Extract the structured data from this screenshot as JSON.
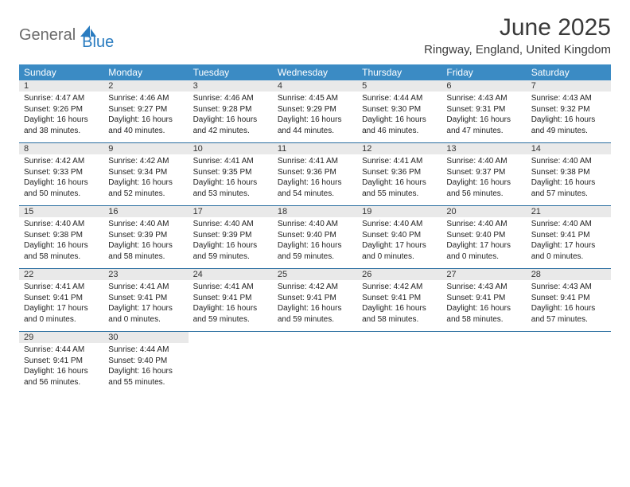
{
  "logo": {
    "word1": "General",
    "word2": "Blue",
    "word1_color": "#6b6b6b",
    "word2_color": "#2a7cc0",
    "sail_color": "#2a7cc0"
  },
  "title": "June 2025",
  "location": "Ringway, England, United Kingdom",
  "header_bg": "#3b8bc4",
  "header_fg": "#ffffff",
  "daynum_bg": "#e9e9e9",
  "divider_color": "#2a6ea0",
  "text_color": "#222222",
  "weekdays": [
    "Sunday",
    "Monday",
    "Tuesday",
    "Wednesday",
    "Thursday",
    "Friday",
    "Saturday"
  ],
  "weeks": [
    [
      {
        "day": "1",
        "sunrise": "4:47 AM",
        "sunset": "9:26 PM",
        "daylight": "16 hours and 38 minutes."
      },
      {
        "day": "2",
        "sunrise": "4:46 AM",
        "sunset": "9:27 PM",
        "daylight": "16 hours and 40 minutes."
      },
      {
        "day": "3",
        "sunrise": "4:46 AM",
        "sunset": "9:28 PM",
        "daylight": "16 hours and 42 minutes."
      },
      {
        "day": "4",
        "sunrise": "4:45 AM",
        "sunset": "9:29 PM",
        "daylight": "16 hours and 44 minutes."
      },
      {
        "day": "5",
        "sunrise": "4:44 AM",
        "sunset": "9:30 PM",
        "daylight": "16 hours and 46 minutes."
      },
      {
        "day": "6",
        "sunrise": "4:43 AM",
        "sunset": "9:31 PM",
        "daylight": "16 hours and 47 minutes."
      },
      {
        "day": "7",
        "sunrise": "4:43 AM",
        "sunset": "9:32 PM",
        "daylight": "16 hours and 49 minutes."
      }
    ],
    [
      {
        "day": "8",
        "sunrise": "4:42 AM",
        "sunset": "9:33 PM",
        "daylight": "16 hours and 50 minutes."
      },
      {
        "day": "9",
        "sunrise": "4:42 AM",
        "sunset": "9:34 PM",
        "daylight": "16 hours and 52 minutes."
      },
      {
        "day": "10",
        "sunrise": "4:41 AM",
        "sunset": "9:35 PM",
        "daylight": "16 hours and 53 minutes."
      },
      {
        "day": "11",
        "sunrise": "4:41 AM",
        "sunset": "9:36 PM",
        "daylight": "16 hours and 54 minutes."
      },
      {
        "day": "12",
        "sunrise": "4:41 AM",
        "sunset": "9:36 PM",
        "daylight": "16 hours and 55 minutes."
      },
      {
        "day": "13",
        "sunrise": "4:40 AM",
        "sunset": "9:37 PM",
        "daylight": "16 hours and 56 minutes."
      },
      {
        "day": "14",
        "sunrise": "4:40 AM",
        "sunset": "9:38 PM",
        "daylight": "16 hours and 57 minutes."
      }
    ],
    [
      {
        "day": "15",
        "sunrise": "4:40 AM",
        "sunset": "9:38 PM",
        "daylight": "16 hours and 58 minutes."
      },
      {
        "day": "16",
        "sunrise": "4:40 AM",
        "sunset": "9:39 PM",
        "daylight": "16 hours and 58 minutes."
      },
      {
        "day": "17",
        "sunrise": "4:40 AM",
        "sunset": "9:39 PM",
        "daylight": "16 hours and 59 minutes."
      },
      {
        "day": "18",
        "sunrise": "4:40 AM",
        "sunset": "9:40 PM",
        "daylight": "16 hours and 59 minutes."
      },
      {
        "day": "19",
        "sunrise": "4:40 AM",
        "sunset": "9:40 PM",
        "daylight": "17 hours and 0 minutes."
      },
      {
        "day": "20",
        "sunrise": "4:40 AM",
        "sunset": "9:40 PM",
        "daylight": "17 hours and 0 minutes."
      },
      {
        "day": "21",
        "sunrise": "4:40 AM",
        "sunset": "9:41 PM",
        "daylight": "17 hours and 0 minutes."
      }
    ],
    [
      {
        "day": "22",
        "sunrise": "4:41 AM",
        "sunset": "9:41 PM",
        "daylight": "17 hours and 0 minutes."
      },
      {
        "day": "23",
        "sunrise": "4:41 AM",
        "sunset": "9:41 PM",
        "daylight": "17 hours and 0 minutes."
      },
      {
        "day": "24",
        "sunrise": "4:41 AM",
        "sunset": "9:41 PM",
        "daylight": "16 hours and 59 minutes."
      },
      {
        "day": "25",
        "sunrise": "4:42 AM",
        "sunset": "9:41 PM",
        "daylight": "16 hours and 59 minutes."
      },
      {
        "day": "26",
        "sunrise": "4:42 AM",
        "sunset": "9:41 PM",
        "daylight": "16 hours and 58 minutes."
      },
      {
        "day": "27",
        "sunrise": "4:43 AM",
        "sunset": "9:41 PM",
        "daylight": "16 hours and 58 minutes."
      },
      {
        "day": "28",
        "sunrise": "4:43 AM",
        "sunset": "9:41 PM",
        "daylight": "16 hours and 57 minutes."
      }
    ],
    [
      {
        "day": "29",
        "sunrise": "4:44 AM",
        "sunset": "9:41 PM",
        "daylight": "16 hours and 56 minutes."
      },
      {
        "day": "30",
        "sunrise": "4:44 AM",
        "sunset": "9:40 PM",
        "daylight": "16 hours and 55 minutes."
      },
      null,
      null,
      null,
      null,
      null
    ]
  ],
  "labels": {
    "sunrise": "Sunrise:",
    "sunset": "Sunset:",
    "daylight": "Daylight:"
  }
}
